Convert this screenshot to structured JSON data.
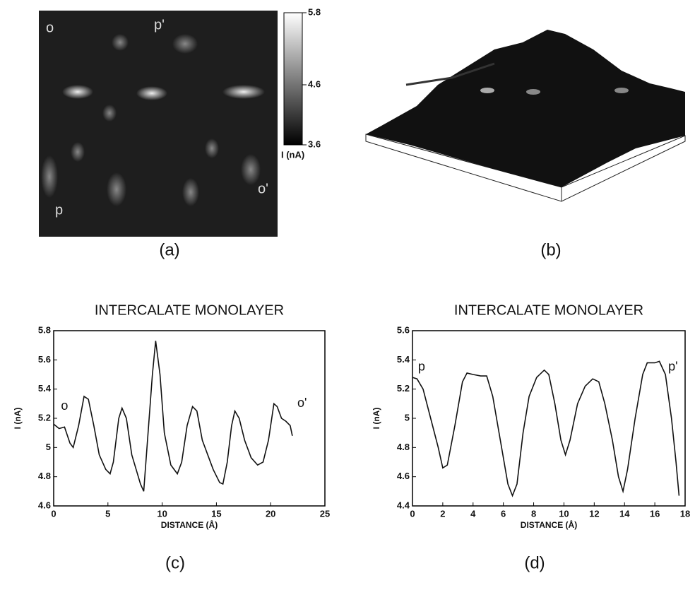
{
  "image_a": {
    "panel": "(a)",
    "markers": [
      "o",
      "p'",
      "o'",
      "p"
    ],
    "colorbar": {
      "lim": [
        3.6,
        5.8
      ],
      "ticks": [
        5.8,
        4.6,
        3.6
      ],
      "label": "I (nA)"
    }
  },
  "image_b": {
    "panel": "(b)"
  },
  "chart_data": [
    {
      "type": "line",
      "title": "INTERCALATE MONOLAYER",
      "panel": "(c)",
      "xlabel": "DISTANCE (Å)",
      "ylabel": "I (nA)",
      "color": "#111111",
      "x": [
        0,
        0.5,
        1,
        1.5,
        1.8,
        2.3,
        2.8,
        3.2,
        3.7,
        4.2,
        4.8,
        5.2,
        5.5,
        6,
        6.3,
        6.7,
        7.2,
        7.6,
        8,
        8.3,
        8.7,
        9.1,
        9.4,
        9.8,
        10.2,
        10.8,
        11.4,
        11.8,
        12.3,
        12.8,
        13.2,
        13.7,
        14.2,
        14.7,
        15.3,
        15.6,
        16,
        16.4,
        16.7,
        17.1,
        17.6,
        18.2,
        18.8,
        19.3,
        19.8,
        20.3,
        20.6,
        21,
        21.4,
        21.8,
        22
      ],
      "values": [
        5.16,
        5.13,
        5.14,
        5.03,
        5.0,
        5.15,
        5.35,
        5.33,
        5.15,
        4.95,
        4.85,
        4.82,
        4.9,
        5.2,
        5.27,
        5.2,
        4.95,
        4.85,
        4.75,
        4.7,
        5.1,
        5.5,
        5.73,
        5.5,
        5.1,
        4.88,
        4.82,
        4.9,
        5.15,
        5.28,
        5.25,
        5.05,
        4.95,
        4.85,
        4.76,
        4.75,
        4.9,
        5.15,
        5.25,
        5.2,
        5.05,
        4.93,
        4.88,
        4.9,
        5.05,
        5.3,
        5.28,
        5.2,
        5.18,
        5.15,
        5.08
      ],
      "xlim": [
        0,
        25
      ],
      "xticks": [
        0,
        5,
        10,
        15,
        20,
        25
      ],
      "ylim": [
        4.6,
        5.8
      ],
      "yticks": [
        4.6,
        4.8,
        5,
        5.2,
        5.4,
        5.6,
        5.8
      ],
      "annotations": [
        {
          "text": "o",
          "x": 1,
          "y": 5.28
        },
        {
          "text": "o'",
          "x": 22.9,
          "y": 5.3
        }
      ]
    },
    {
      "type": "line",
      "title": "INTERCALATE MONOLAYER",
      "panel": "(d)",
      "xlabel": "DISTANCE (Å)",
      "ylabel": "I (nA)",
      "color": "#111111",
      "x": [
        0,
        0.3,
        0.7,
        1.2,
        1.7,
        2,
        2.3,
        2.8,
        3.3,
        3.6,
        4,
        4.5,
        4.9,
        5.3,
        5.8,
        6.3,
        6.6,
        6.9,
        7.3,
        7.7,
        8.2,
        8.7,
        9,
        9.4,
        9.8,
        10.1,
        10.4,
        10.9,
        11.4,
        11.9,
        12.3,
        12.7,
        13.2,
        13.6,
        13.9,
        14.2,
        14.7,
        15.2,
        15.5,
        16,
        16.3,
        16.7,
        17.1,
        17.4,
        17.6
      ],
      "values": [
        5.28,
        5.27,
        5.2,
        5.0,
        4.8,
        4.66,
        4.68,
        4.95,
        5.25,
        5.31,
        5.3,
        5.29,
        5.29,
        5.15,
        4.85,
        4.55,
        4.47,
        4.55,
        4.9,
        5.15,
        5.28,
        5.33,
        5.3,
        5.1,
        4.85,
        4.75,
        4.85,
        5.1,
        5.22,
        5.27,
        5.25,
        5.1,
        4.85,
        4.6,
        4.5,
        4.65,
        5.0,
        5.3,
        5.38,
        5.38,
        5.39,
        5.3,
        5.0,
        4.7,
        4.47
      ],
      "xlim": [
        0,
        18
      ],
      "xticks": [
        0,
        2,
        4,
        6,
        8,
        10,
        12,
        14,
        16,
        18
      ],
      "ylim": [
        4.4,
        5.6
      ],
      "yticks": [
        4.4,
        4.6,
        4.8,
        5,
        5.2,
        5.4,
        5.6
      ],
      "annotations": [
        {
          "text": "p",
          "x": 0.6,
          "y": 5.35
        },
        {
          "text": "p'",
          "x": 17.2,
          "y": 5.35
        }
      ]
    }
  ]
}
